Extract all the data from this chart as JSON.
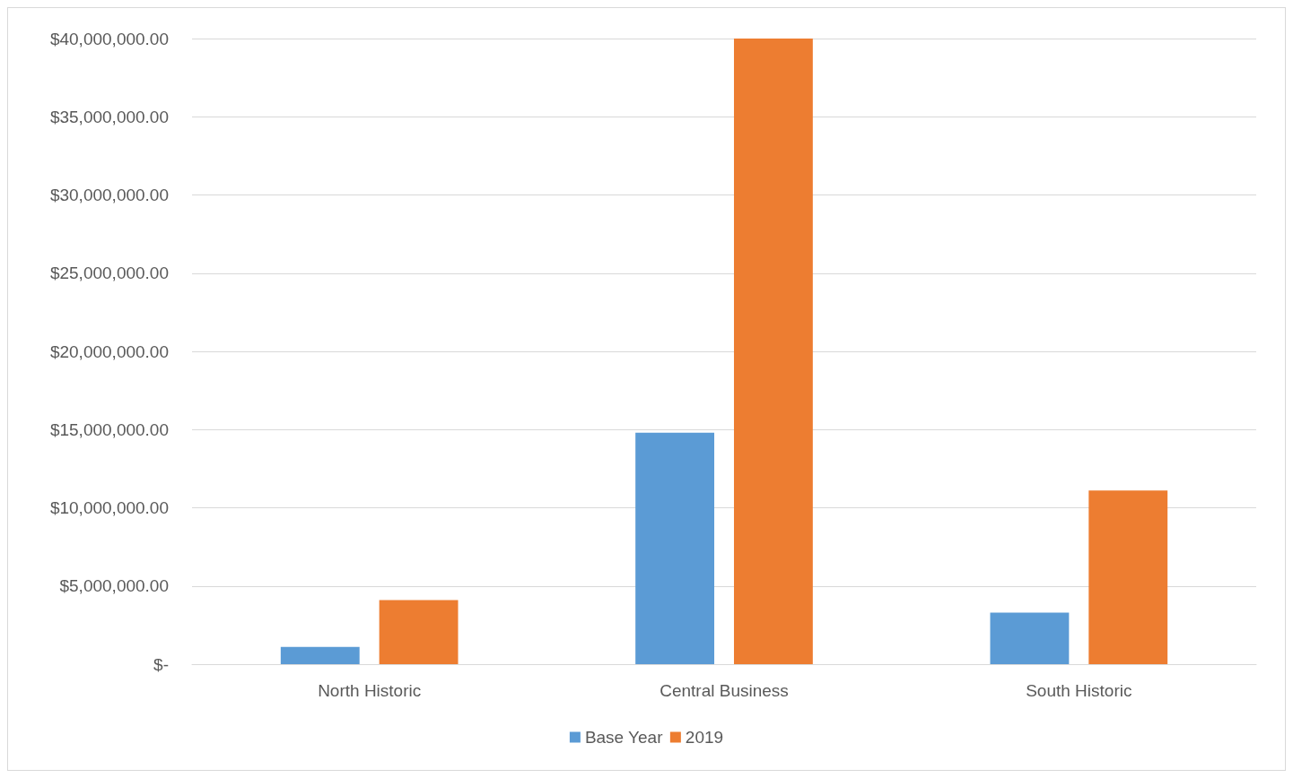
{
  "chart_data": {
    "type": "bar",
    "categories": [
      "North Historic",
      "Central Business",
      "South Historic"
    ],
    "series": [
      {
        "name": "Base Year",
        "color": "#5b9bd5",
        "values": [
          1100000,
          14800000,
          3300000
        ]
      },
      {
        "name": "2019",
        "color": "#ed7d31",
        "values": [
          4100000,
          40000000,
          11100000
        ]
      }
    ],
    "ylim": [
      0,
      40000000
    ],
    "yticks": [
      {
        "value": 0,
        "label": "$-"
      },
      {
        "value": 5000000,
        "label": "$5,000,000.00"
      },
      {
        "value": 10000000,
        "label": "$10,000,000.00"
      },
      {
        "value": 15000000,
        "label": "$15,000,000.00"
      },
      {
        "value": 20000000,
        "label": "$20,000,000.00"
      },
      {
        "value": 25000000,
        "label": "$25,000,000.00"
      },
      {
        "value": 30000000,
        "label": "$30,000,000.00"
      },
      {
        "value": 35000000,
        "label": "$35,000,000.00"
      },
      {
        "value": 40000000,
        "label": "$40,000,000.00"
      }
    ],
    "grid": "y",
    "legend": "bottom"
  }
}
